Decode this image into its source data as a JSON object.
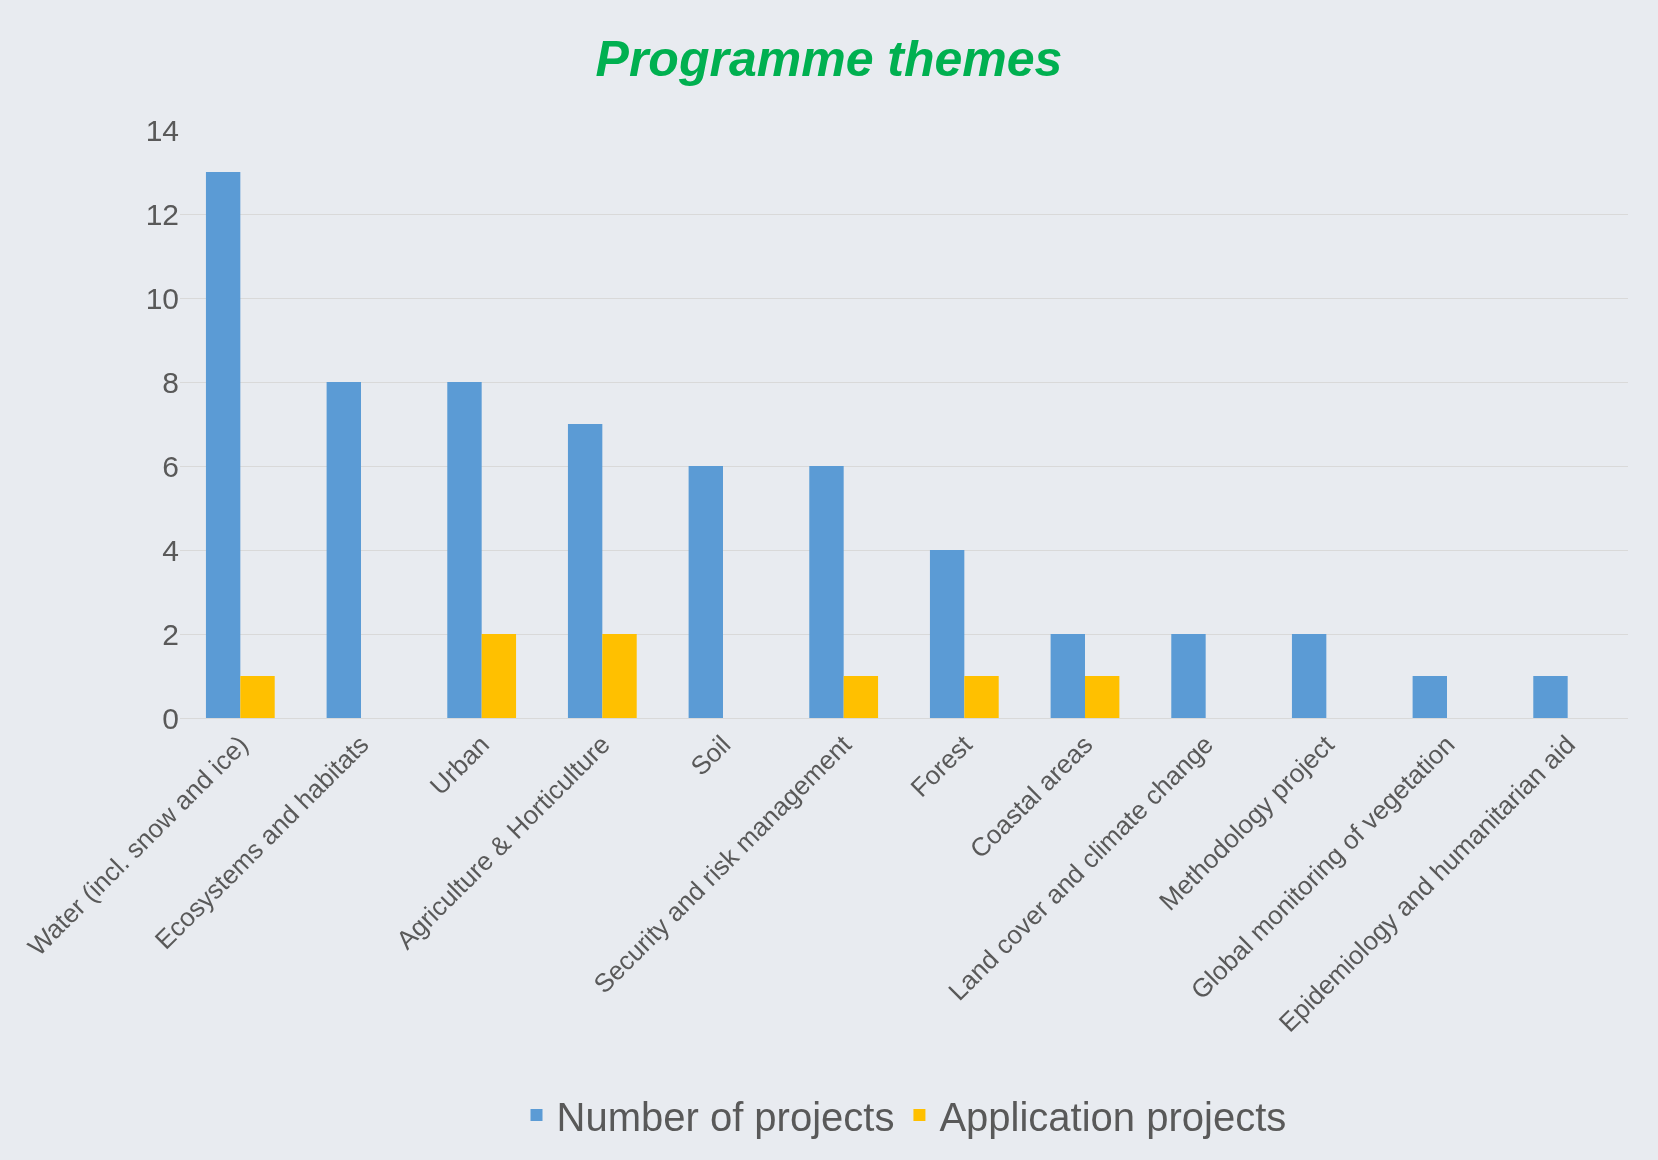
{
  "chart_data": {
    "type": "bar",
    "title": "Programme themes",
    "categories": [
      "Water (incl. snow and ice)",
      "Ecosystems and habitats",
      "Urban",
      "Agriculture & Horticulture",
      "Soil",
      "Security and risk management",
      "Forest",
      "Coastal areas",
      "Land cover and climate change",
      "Methodology project",
      "Global monitoring of vegetation",
      "Epidemiology and humanitarian aid"
    ],
    "series": [
      {
        "name": "Number of projects",
        "color": "#5b9bd5",
        "values": [
          13,
          8,
          8,
          7,
          6,
          6,
          4,
          2,
          2,
          2,
          1,
          1
        ]
      },
      {
        "name": "Application projects",
        "color": "#ffc000",
        "values": [
          1,
          null,
          2,
          2,
          null,
          1,
          1,
          1,
          null,
          null,
          null,
          null
        ]
      }
    ],
    "ylim": [
      0,
      14
    ],
    "yticks": [
      0,
      2,
      4,
      6,
      8,
      10,
      12,
      14
    ],
    "grid": "y",
    "legend": "bottom"
  }
}
